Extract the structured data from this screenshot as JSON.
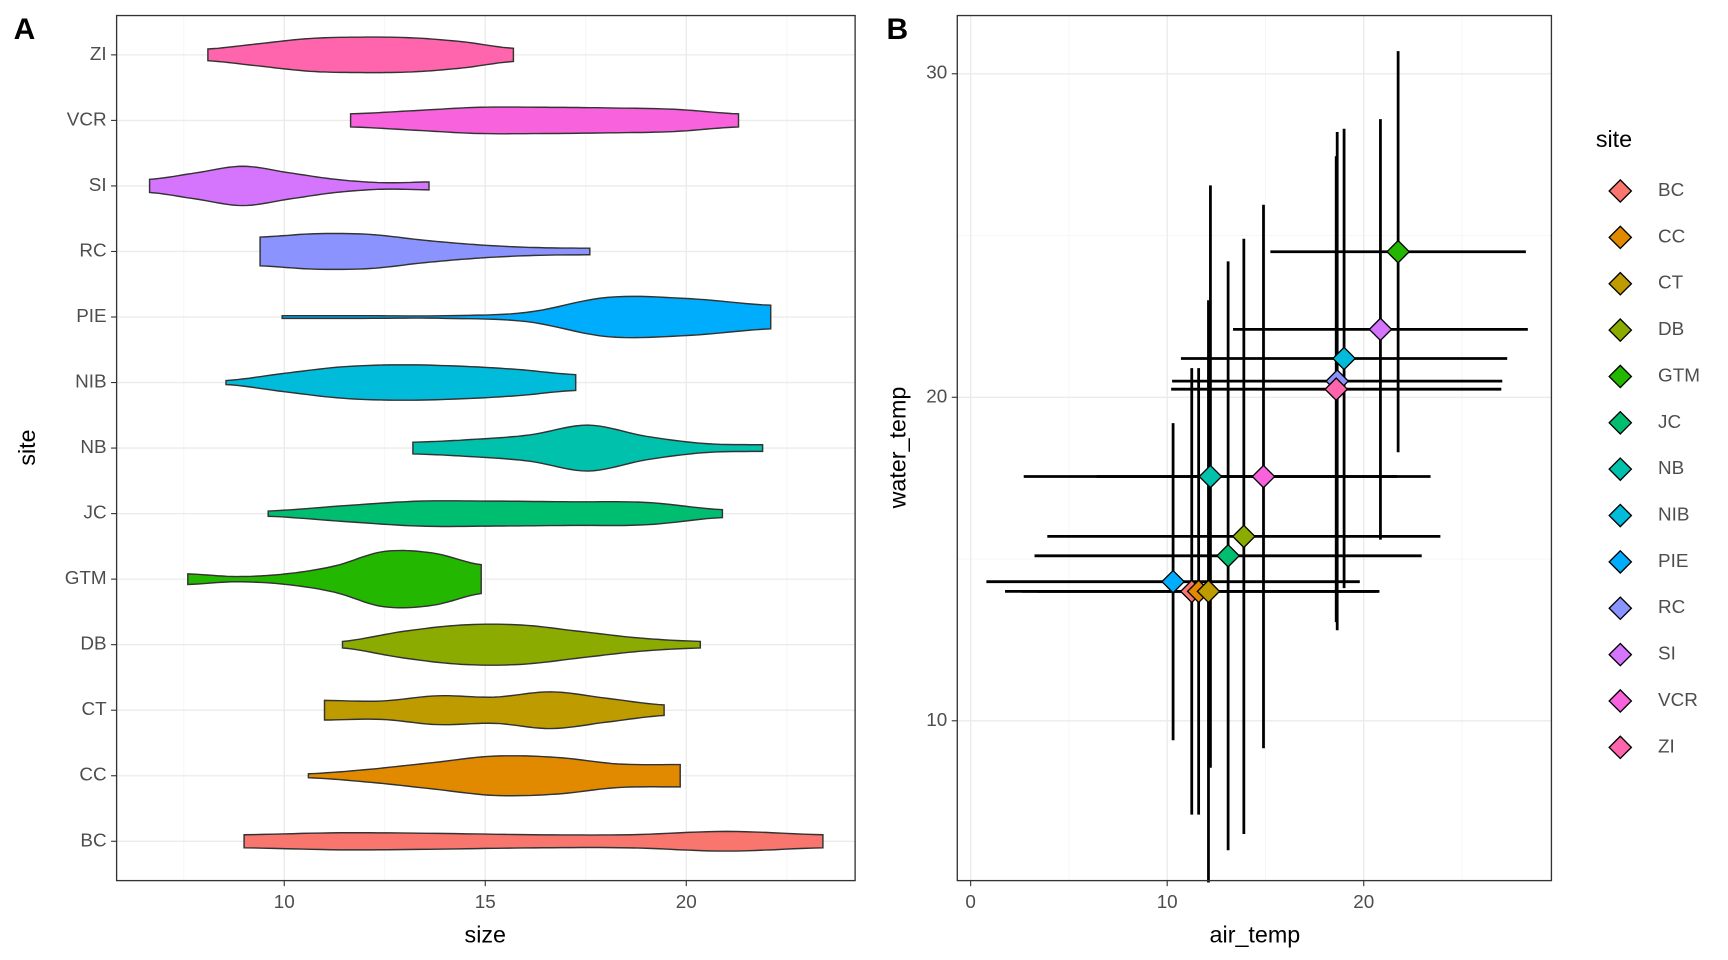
{
  "chart_data": [
    {
      "type": "violin",
      "panel_label": "A",
      "xlabel": "size",
      "ylabel": "site",
      "xlim": [
        5.83,
        24.2
      ],
      "xticks": [
        10,
        15,
        20
      ],
      "x_minor_grid": [
        7.5,
        12.5,
        17.5,
        22.5
      ],
      "categories": [
        "BC",
        "CC",
        "CT",
        "DB",
        "GTM",
        "JC",
        "NB",
        "NIB",
        "PIE",
        "RC",
        "SI",
        "VCR",
        "ZI"
      ],
      "colors": [
        "#F8766D",
        "#E18A00",
        "#BE9C00",
        "#8CAB00",
        "#24B700",
        "#00BE70",
        "#00C1AB",
        "#00BBDA",
        "#00ACFC",
        "#8B93FF",
        "#D575FE",
        "#F962DD",
        "#FF65AC"
      ],
      "violins": [
        {
          "min": 9.0,
          "max": 23.4,
          "widths": [
            0.1,
            0.13,
            0.12,
            0.1,
            0.1,
            0.15,
            0.1
          ]
        },
        {
          "min": 10.6,
          "max": 19.85,
          "widths": [
            0.03,
            0.1,
            0.2,
            0.3,
            0.28,
            0.18,
            0.17
          ]
        },
        {
          "min": 11.0,
          "max": 19.45,
          "widths": [
            0.15,
            0.14,
            0.22,
            0.2,
            0.28,
            0.18,
            0.08
          ]
        },
        {
          "min": 11.45,
          "max": 20.35,
          "widths": [
            0.05,
            0.2,
            0.3,
            0.3,
            0.2,
            0.1,
            0.05
          ]
        },
        {
          "min": 7.6,
          "max": 14.9,
          "widths": [
            0.08,
            0.04,
            0.08,
            0.2,
            0.42,
            0.4,
            0.22
          ]
        },
        {
          "min": 9.6,
          "max": 20.9,
          "widths": [
            0.04,
            0.12,
            0.19,
            0.19,
            0.18,
            0.17,
            0.06
          ]
        },
        {
          "min": 13.2,
          "max": 21.9,
          "widths": [
            0.09,
            0.13,
            0.2,
            0.35,
            0.18,
            0.07,
            0.05
          ]
        },
        {
          "min": 8.55,
          "max": 17.25,
          "widths": [
            0.03,
            0.14,
            0.24,
            0.27,
            0.25,
            0.2,
            0.12
          ]
        },
        {
          "min": 9.95,
          "max": 22.1,
          "widths": [
            0.02,
            0.02,
            0.02,
            0.07,
            0.3,
            0.28,
            0.18
          ]
        },
        {
          "min": 9.4,
          "max": 17.6,
          "widths": [
            0.22,
            0.27,
            0.26,
            0.17,
            0.1,
            0.06,
            0.05
          ]
        },
        {
          "min": 6.65,
          "max": 13.6,
          "widths": [
            0.1,
            0.2,
            0.3,
            0.2,
            0.1,
            0.05,
            0.06
          ]
        },
        {
          "min": 11.65,
          "max": 21.3,
          "widths": [
            0.1,
            0.15,
            0.2,
            0.2,
            0.19,
            0.17,
            0.1
          ]
        },
        {
          "min": 8.1,
          "max": 15.7,
          "widths": [
            0.09,
            0.17,
            0.25,
            0.27,
            0.26,
            0.2,
            0.1
          ]
        }
      ]
    },
    {
      "type": "scatter",
      "panel_label": "B",
      "xlabel": "air_temp",
      "ylabel": "water_temp",
      "legend_title": "site",
      "xlim": [
        -0.68,
        29.55
      ],
      "ylim": [
        5.06,
        31.8
      ],
      "xticks": [
        0,
        10,
        20
      ],
      "yticks": [
        10,
        20,
        30
      ],
      "x_minor_grid": [
        5,
        15,
        25
      ],
      "y_minor_grid": [
        15,
        25
      ],
      "series": [
        {
          "name": "BC",
          "color": "#F8766D",
          "x": 11.25,
          "y": 14.0,
          "xerr": 9.5,
          "yerr": 6.9
        },
        {
          "name": "CC",
          "color": "#E18A00",
          "x": 11.6,
          "y": 14.0,
          "xerr": 9.0,
          "yerr": 6.9
        },
        {
          "name": "CT",
          "color": "#BE9C00",
          "x": 12.1,
          "y": 14.0,
          "xerr": 8.7,
          "yerr": 9.0
        },
        {
          "name": "DB",
          "color": "#8CAB00",
          "x": 13.9,
          "y": 15.7,
          "xerr": 10.0,
          "yerr": 9.2
        },
        {
          "name": "GTM",
          "color": "#24B700",
          "x": 21.75,
          "y": 24.5,
          "xerr": 6.5,
          "yerr": 6.2
        },
        {
          "name": "JC",
          "color": "#00BE70",
          "x": 13.1,
          "y": 15.1,
          "xerr": 9.85,
          "yerr": 9.1
        },
        {
          "name": "NB",
          "color": "#00C1AB",
          "x": 12.2,
          "y": 17.55,
          "xerr": 9.5,
          "yerr": 9.0
        },
        {
          "name": "NIB",
          "color": "#00BBDA",
          "x": 19.0,
          "y": 21.2,
          "xerr": 8.3,
          "yerr": 7.1
        },
        {
          "name": "PIE",
          "color": "#00ACFC",
          "x": 10.3,
          "y": 14.3,
          "xerr": 9.5,
          "yerr": 4.9
        },
        {
          "name": "RC",
          "color": "#8B93FF",
          "x": 18.65,
          "y": 20.5,
          "xerr": 8.4,
          "yerr": 7.7
        },
        {
          "name": "SI",
          "color": "#D575FE",
          "x": 20.85,
          "y": 22.1,
          "xerr": 7.5,
          "yerr": 6.5
        },
        {
          "name": "VCR",
          "color": "#F962DD",
          "x": 14.9,
          "y": 17.55,
          "xerr": 8.5,
          "yerr": 8.4
        },
        {
          "name": "ZI",
          "color": "#FF65AC",
          "x": 18.6,
          "y": 20.25,
          "xerr": 8.4,
          "yerr": 7.2
        }
      ]
    }
  ]
}
